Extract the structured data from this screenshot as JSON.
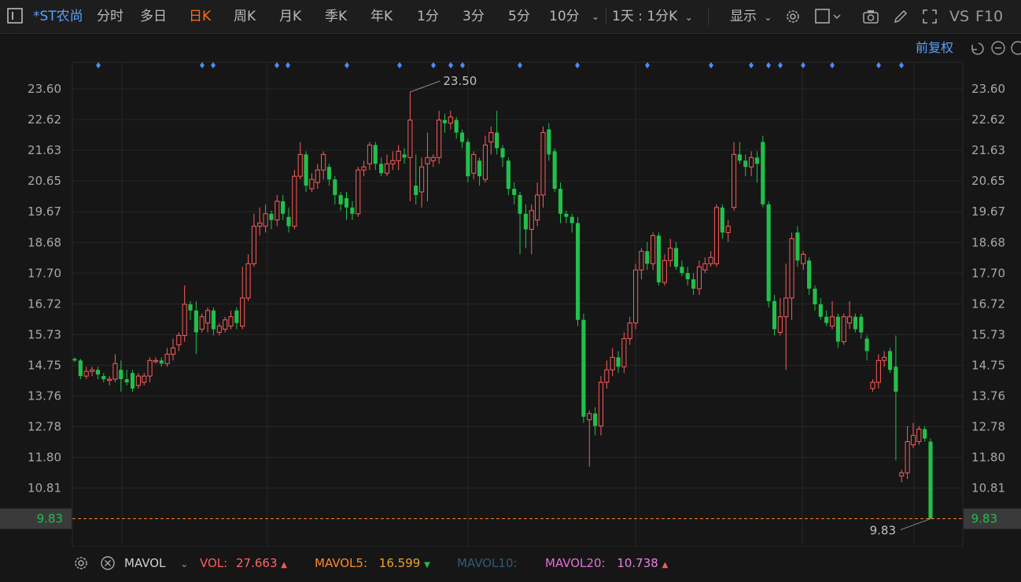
{
  "toolbar": {
    "stock_name": "*ST农尚",
    "tabs": [
      {
        "label": "分时",
        "active": false
      },
      {
        "label": "多日",
        "active": false
      },
      {
        "label": "日K",
        "active": true
      },
      {
        "label": "周K",
        "active": false
      },
      {
        "label": "月K",
        "active": false
      },
      {
        "label": "季K",
        "active": false
      },
      {
        "label": "年K",
        "active": false
      },
      {
        "label": "1分",
        "active": false
      },
      {
        "label": "3分",
        "active": false
      },
      {
        "label": "5分",
        "active": false
      },
      {
        "label": "10分",
        "active": false
      }
    ],
    "period_select": "1天 : 1分K",
    "display_label": "显示",
    "vs_label": "VS",
    "f10_label": "F10"
  },
  "chart": {
    "adjust_label": "前复权",
    "y_ticks": [
      "23.60",
      "22.62",
      "21.63",
      "20.65",
      "19.67",
      "18.68",
      "17.70",
      "16.72",
      "15.73",
      "14.75",
      "13.76",
      "12.78",
      "11.80",
      "10.81"
    ],
    "current_price": "9.83",
    "high_label": "23.50",
    "low_label": "9.83",
    "colors": {
      "up": "#ff5a5a",
      "down": "#21c04b",
      "line": "#ff7a33",
      "grid": "#262626",
      "marker": "#4a8cff"
    }
  },
  "chart_data": {
    "type": "candlestick",
    "ylim": [
      9.4,
      24.0
    ],
    "candles": [
      {
        "o": 14.95,
        "c": 14.9,
        "h": 15.0,
        "l": 14.85
      },
      {
        "o": 14.9,
        "c": 14.4,
        "h": 14.95,
        "l": 14.3
      },
      {
        "o": 14.4,
        "c": 14.55,
        "h": 14.7,
        "l": 14.3
      },
      {
        "o": 14.55,
        "c": 14.6,
        "h": 14.7,
        "l": 14.4
      },
      {
        "o": 14.6,
        "c": 14.45,
        "h": 14.7,
        "l": 14.3
      },
      {
        "o": 14.4,
        "c": 14.3,
        "h": 14.5,
        "l": 14.2
      },
      {
        "o": 14.3,
        "c": 14.3,
        "h": 14.4,
        "l": 14.1
      },
      {
        "o": 14.3,
        "c": 14.8,
        "h": 15.1,
        "l": 14.2
      },
      {
        "o": 14.6,
        "c": 14.3,
        "h": 14.9,
        "l": 13.9
      },
      {
        "o": 14.3,
        "c": 14.2,
        "h": 14.6,
        "l": 14.1
      },
      {
        "o": 14.5,
        "c": 14.0,
        "h": 14.6,
        "l": 13.9
      },
      {
        "o": 14.1,
        "c": 14.4,
        "h": 14.5,
        "l": 14.0
      },
      {
        "o": 14.2,
        "c": 14.4,
        "h": 14.5,
        "l": 14.1
      },
      {
        "o": 14.4,
        "c": 14.9,
        "h": 15.0,
        "l": 14.2
      },
      {
        "o": 14.9,
        "c": 14.9,
        "h": 15.0,
        "l": 14.8
      },
      {
        "o": 14.9,
        "c": 14.8,
        "h": 15.0,
        "l": 14.7
      },
      {
        "o": 14.8,
        "c": 15.1,
        "h": 15.3,
        "l": 14.7
      },
      {
        "o": 15.1,
        "c": 15.3,
        "h": 15.6,
        "l": 14.9
      },
      {
        "o": 15.4,
        "c": 15.7,
        "h": 15.8,
        "l": 15.2
      },
      {
        "o": 15.7,
        "c": 16.7,
        "h": 17.3,
        "l": 15.5
      },
      {
        "o": 16.7,
        "c": 16.5,
        "h": 16.8,
        "l": 16.2
      },
      {
        "o": 16.5,
        "c": 15.8,
        "h": 16.8,
        "l": 15.1
      },
      {
        "o": 15.9,
        "c": 16.3,
        "h": 16.4,
        "l": 15.8
      },
      {
        "o": 16.1,
        "c": 16.5,
        "h": 16.6,
        "l": 15.8
      },
      {
        "o": 16.5,
        "c": 15.9,
        "h": 16.6,
        "l": 15.7
      },
      {
        "o": 15.8,
        "c": 16.0,
        "h": 16.1,
        "l": 15.7
      },
      {
        "o": 15.9,
        "c": 16.2,
        "h": 16.3,
        "l": 15.8
      },
      {
        "o": 16.0,
        "c": 16.3,
        "h": 16.5,
        "l": 15.9
      },
      {
        "o": 16.5,
        "c": 16.1,
        "h": 16.6,
        "l": 15.9
      },
      {
        "o": 16.0,
        "c": 16.9,
        "h": 17.9,
        "l": 15.9
      },
      {
        "o": 16.9,
        "c": 18.0,
        "h": 18.3,
        "l": 16.8
      },
      {
        "o": 18.0,
        "c": 19.2,
        "h": 19.6,
        "l": 17.9
      },
      {
        "o": 19.2,
        "c": 19.3,
        "h": 19.8,
        "l": 18.9
      },
      {
        "o": 19.2,
        "c": 19.6,
        "h": 19.9,
        "l": 19.0
      },
      {
        "o": 19.6,
        "c": 19.4,
        "h": 19.7,
        "l": 19.1
      },
      {
        "o": 19.4,
        "c": 20.0,
        "h": 20.2,
        "l": 19.2
      },
      {
        "o": 20.0,
        "c": 19.6,
        "h": 20.2,
        "l": 19.4
      },
      {
        "o": 19.5,
        "c": 19.2,
        "h": 19.8,
        "l": 19.0
      },
      {
        "o": 19.2,
        "c": 20.8,
        "h": 21.0,
        "l": 19.1
      },
      {
        "o": 20.8,
        "c": 21.5,
        "h": 21.9,
        "l": 20.7
      },
      {
        "o": 21.5,
        "c": 20.5,
        "h": 21.6,
        "l": 20.3
      },
      {
        "o": 20.4,
        "c": 20.7,
        "h": 20.9,
        "l": 20.3
      },
      {
        "o": 20.6,
        "c": 21.0,
        "h": 21.2,
        "l": 20.4
      },
      {
        "o": 21.0,
        "c": 21.5,
        "h": 21.6,
        "l": 20.7
      },
      {
        "o": 21.1,
        "c": 20.7,
        "h": 21.2,
        "l": 20.5
      },
      {
        "o": 20.7,
        "c": 20.2,
        "h": 20.8,
        "l": 19.9
      },
      {
        "o": 20.2,
        "c": 19.9,
        "h": 20.3,
        "l": 19.7
      },
      {
        "o": 20.1,
        "c": 19.8,
        "h": 20.3,
        "l": 19.4
      },
      {
        "o": 19.8,
        "c": 19.6,
        "h": 20.0,
        "l": 19.4
      },
      {
        "o": 19.6,
        "c": 21.0,
        "h": 21.1,
        "l": 19.5
      },
      {
        "o": 21.0,
        "c": 21.1,
        "h": 21.3,
        "l": 20.8
      },
      {
        "o": 21.2,
        "c": 21.8,
        "h": 21.9,
        "l": 21.0
      },
      {
        "o": 21.8,
        "c": 21.2,
        "h": 21.9,
        "l": 21.0
      },
      {
        "o": 21.2,
        "c": 20.9,
        "h": 21.4,
        "l": 20.8
      },
      {
        "o": 20.9,
        "c": 21.2,
        "h": 21.5,
        "l": 20.8
      },
      {
        "o": 21.2,
        "c": 21.3,
        "h": 21.6,
        "l": 21.0
      },
      {
        "o": 21.3,
        "c": 21.6,
        "h": 21.8,
        "l": 21.0
      },
      {
        "o": 21.5,
        "c": 21.4,
        "h": 21.7,
        "l": 21.2
      },
      {
        "o": 21.4,
        "c": 22.6,
        "h": 23.5,
        "l": 20.0
      },
      {
        "o": 20.5,
        "c": 20.2,
        "h": 21.5,
        "l": 19.9
      },
      {
        "o": 20.3,
        "c": 21.1,
        "h": 21.4,
        "l": 19.8
      },
      {
        "o": 21.2,
        "c": 21.4,
        "h": 22.2,
        "l": 20.0
      },
      {
        "o": 21.3,
        "c": 21.4,
        "h": 21.5,
        "l": 21.1
      },
      {
        "o": 21.4,
        "c": 22.6,
        "h": 22.9,
        "l": 21.2
      },
      {
        "o": 22.6,
        "c": 22.5,
        "h": 22.8,
        "l": 22.2
      },
      {
        "o": 22.5,
        "c": 22.7,
        "h": 22.9,
        "l": 22.3
      },
      {
        "o": 22.6,
        "c": 22.2,
        "h": 22.7,
        "l": 22.0
      },
      {
        "o": 22.2,
        "c": 21.9,
        "h": 22.3,
        "l": 21.7
      },
      {
        "o": 21.9,
        "c": 20.8,
        "h": 22.0,
        "l": 20.6
      },
      {
        "o": 20.9,
        "c": 21.5,
        "h": 21.6,
        "l": 20.7
      },
      {
        "o": 21.3,
        "c": 20.8,
        "h": 21.4,
        "l": 20.5
      },
      {
        "o": 20.7,
        "c": 21.8,
        "h": 22.1,
        "l": 20.6
      },
      {
        "o": 21.9,
        "c": 22.2,
        "h": 22.4,
        "l": 21.5
      },
      {
        "o": 22.2,
        "c": 21.7,
        "h": 22.9,
        "l": 21.5
      },
      {
        "o": 21.7,
        "c": 21.4,
        "h": 21.8,
        "l": 21.1
      },
      {
        "o": 21.3,
        "c": 20.4,
        "h": 21.4,
        "l": 20.2
      },
      {
        "o": 20.4,
        "c": 20.2,
        "h": 20.6,
        "l": 19.9
      },
      {
        "o": 20.2,
        "c": 19.6,
        "h": 20.3,
        "l": 18.3
      },
      {
        "o": 19.6,
        "c": 19.1,
        "h": 19.9,
        "l": 18.5
      },
      {
        "o": 19.1,
        "c": 19.7,
        "h": 19.9,
        "l": 18.3
      },
      {
        "o": 19.4,
        "c": 20.2,
        "h": 20.6,
        "l": 19.2
      },
      {
        "o": 20.2,
        "c": 22.2,
        "h": 22.4,
        "l": 19.8
      },
      {
        "o": 22.3,
        "c": 21.5,
        "h": 22.5,
        "l": 21.3
      },
      {
        "o": 21.6,
        "c": 20.4,
        "h": 21.7,
        "l": 20.3
      },
      {
        "o": 20.4,
        "c": 19.6,
        "h": 20.6,
        "l": 19.3
      },
      {
        "o": 19.6,
        "c": 19.5,
        "h": 19.7,
        "l": 19.3
      },
      {
        "o": 19.5,
        "c": 19.3,
        "h": 19.6,
        "l": 19.0
      },
      {
        "o": 19.3,
        "c": 16.2,
        "h": 19.5,
        "l": 16.0
      },
      {
        "o": 16.2,
        "c": 13.1,
        "h": 16.4,
        "l": 12.9
      },
      {
        "o": 13.0,
        "c": 13.2,
        "h": 13.3,
        "l": 11.5
      },
      {
        "o": 13.2,
        "c": 12.8,
        "h": 13.4,
        "l": 12.5
      },
      {
        "o": 12.8,
        "c": 14.2,
        "h": 14.4,
        "l": 12.5
      },
      {
        "o": 14.2,
        "c": 14.6,
        "h": 14.9,
        "l": 14.0
      },
      {
        "o": 14.6,
        "c": 15.0,
        "h": 15.3,
        "l": 14.4
      },
      {
        "o": 15.0,
        "c": 14.7,
        "h": 15.2,
        "l": 14.5
      },
      {
        "o": 14.7,
        "c": 15.6,
        "h": 15.8,
        "l": 14.5
      },
      {
        "o": 15.6,
        "c": 16.1,
        "h": 16.3,
        "l": 15.4
      },
      {
        "o": 16.1,
        "c": 17.8,
        "h": 18.0,
        "l": 15.9
      },
      {
        "o": 17.8,
        "c": 18.4,
        "h": 18.5,
        "l": 17.5
      },
      {
        "o": 18.4,
        "c": 18.0,
        "h": 18.7,
        "l": 17.8
      },
      {
        "o": 18.0,
        "c": 18.9,
        "h": 19.0,
        "l": 17.8
      },
      {
        "o": 18.9,
        "c": 17.4,
        "h": 19.0,
        "l": 17.3
      },
      {
        "o": 17.4,
        "c": 18.1,
        "h": 18.3,
        "l": 17.3
      },
      {
        "o": 18.1,
        "c": 18.5,
        "h": 18.8,
        "l": 17.9
      },
      {
        "o": 18.5,
        "c": 17.9,
        "h": 18.7,
        "l": 17.8
      },
      {
        "o": 17.9,
        "c": 17.7,
        "h": 18.1,
        "l": 17.6
      },
      {
        "o": 17.7,
        "c": 17.5,
        "h": 17.9,
        "l": 17.3
      },
      {
        "o": 17.5,
        "c": 17.2,
        "h": 17.7,
        "l": 17.0
      },
      {
        "o": 17.2,
        "c": 17.9,
        "h": 18.1,
        "l": 17.0
      },
      {
        "o": 17.8,
        "c": 18.0,
        "h": 18.2,
        "l": 17.7
      },
      {
        "o": 18.0,
        "c": 18.2,
        "h": 18.4,
        "l": 17.9
      },
      {
        "o": 18.0,
        "c": 19.8,
        "h": 19.9,
        "l": 17.9
      },
      {
        "o": 19.8,
        "c": 19.0,
        "h": 19.9,
        "l": 18.8
      },
      {
        "o": 19.0,
        "c": 19.2,
        "h": 19.4,
        "l": 18.7
      },
      {
        "o": 19.8,
        "c": 21.5,
        "h": 21.9,
        "l": 19.7
      },
      {
        "o": 21.5,
        "c": 21.3,
        "h": 21.9,
        "l": 21.2
      },
      {
        "o": 21.3,
        "c": 21.1,
        "h": 21.5,
        "l": 20.8
      },
      {
        "o": 21.1,
        "c": 21.4,
        "h": 21.6,
        "l": 20.8
      },
      {
        "o": 21.4,
        "c": 21.2,
        "h": 21.6,
        "l": 20.6
      },
      {
        "o": 21.9,
        "c": 19.9,
        "h": 22.1,
        "l": 19.8
      },
      {
        "o": 19.9,
        "c": 16.8,
        "h": 20.0,
        "l": 16.6
      },
      {
        "o": 16.8,
        "c": 15.9,
        "h": 17.0,
        "l": 15.7
      },
      {
        "o": 15.8,
        "c": 16.3,
        "h": 16.9,
        "l": 15.7
      },
      {
        "o": 16.3,
        "c": 16.9,
        "h": 18.0,
        "l": 14.6
      },
      {
        "o": 16.9,
        "c": 18.8,
        "h": 19.0,
        "l": 16.2
      },
      {
        "o": 19.0,
        "c": 18.1,
        "h": 19.2,
        "l": 17.9
      },
      {
        "o": 18.0,
        "c": 18.3,
        "h": 18.4,
        "l": 17.8
      },
      {
        "o": 18.1,
        "c": 17.2,
        "h": 18.2,
        "l": 17.0
      },
      {
        "o": 17.2,
        "c": 16.7,
        "h": 17.3,
        "l": 16.5
      },
      {
        "o": 16.7,
        "c": 16.3,
        "h": 16.9,
        "l": 16.2
      },
      {
        "o": 16.3,
        "c": 16.1,
        "h": 16.5,
        "l": 16.0
      },
      {
        "o": 16.0,
        "c": 16.3,
        "h": 16.8,
        "l": 15.9
      },
      {
        "o": 16.3,
        "c": 15.5,
        "h": 16.4,
        "l": 15.3
      },
      {
        "o": 15.5,
        "c": 16.3,
        "h": 16.4,
        "l": 15.4
      },
      {
        "o": 16.1,
        "c": 16.3,
        "h": 16.8,
        "l": 15.9
      },
      {
        "o": 16.3,
        "c": 15.9,
        "h": 16.4,
        "l": 15.8
      },
      {
        "o": 16.3,
        "c": 15.8,
        "h": 16.4,
        "l": 15.6
      },
      {
        "o": 15.6,
        "c": 15.2,
        "h": 15.7,
        "l": 14.9
      },
      {
        "o": 14.0,
        "c": 14.2,
        "h": 14.3,
        "l": 13.9
      },
      {
        "o": 14.2,
        "c": 14.9,
        "h": 15.1,
        "l": 14.0
      },
      {
        "o": 14.9,
        "c": 15.0,
        "h": 15.2,
        "l": 14.7
      },
      {
        "o": 15.2,
        "c": 14.6,
        "h": 15.3,
        "l": 14.5
      },
      {
        "o": 14.7,
        "c": 13.9,
        "h": 15.7,
        "l": 11.7
      },
      {
        "o": 11.2,
        "c": 11.3,
        "h": 11.4,
        "l": 11.0
      },
      {
        "o": 11.3,
        "c": 12.3,
        "h": 12.8,
        "l": 11.1
      },
      {
        "o": 12.2,
        "c": 12.5,
        "h": 12.9,
        "l": 12.1
      },
      {
        "o": 12.3,
        "c": 12.7,
        "h": 12.8,
        "l": 12.2
      },
      {
        "o": 12.7,
        "c": 12.4,
        "h": 12.8,
        "l": 12.3
      },
      {
        "o": 12.3,
        "c": 9.83,
        "h": 12.4,
        "l": 9.83
      }
    ],
    "high": 23.5,
    "low": 9.83,
    "current": 9.83
  },
  "bottom": {
    "indicator": "MAVOL",
    "vol_label": "VOL:",
    "vol_value": "27.663",
    "vol_trend": "▲",
    "mavol5_label": "MAVOL5:",
    "mavol5_value": "16.599",
    "mavol5_trend": "▼",
    "mavol10_label": "MAVOL10:",
    "mavol20_label": "MAVOL20:",
    "mavol20_value": "10.738",
    "mavol20_trend": "▲"
  }
}
